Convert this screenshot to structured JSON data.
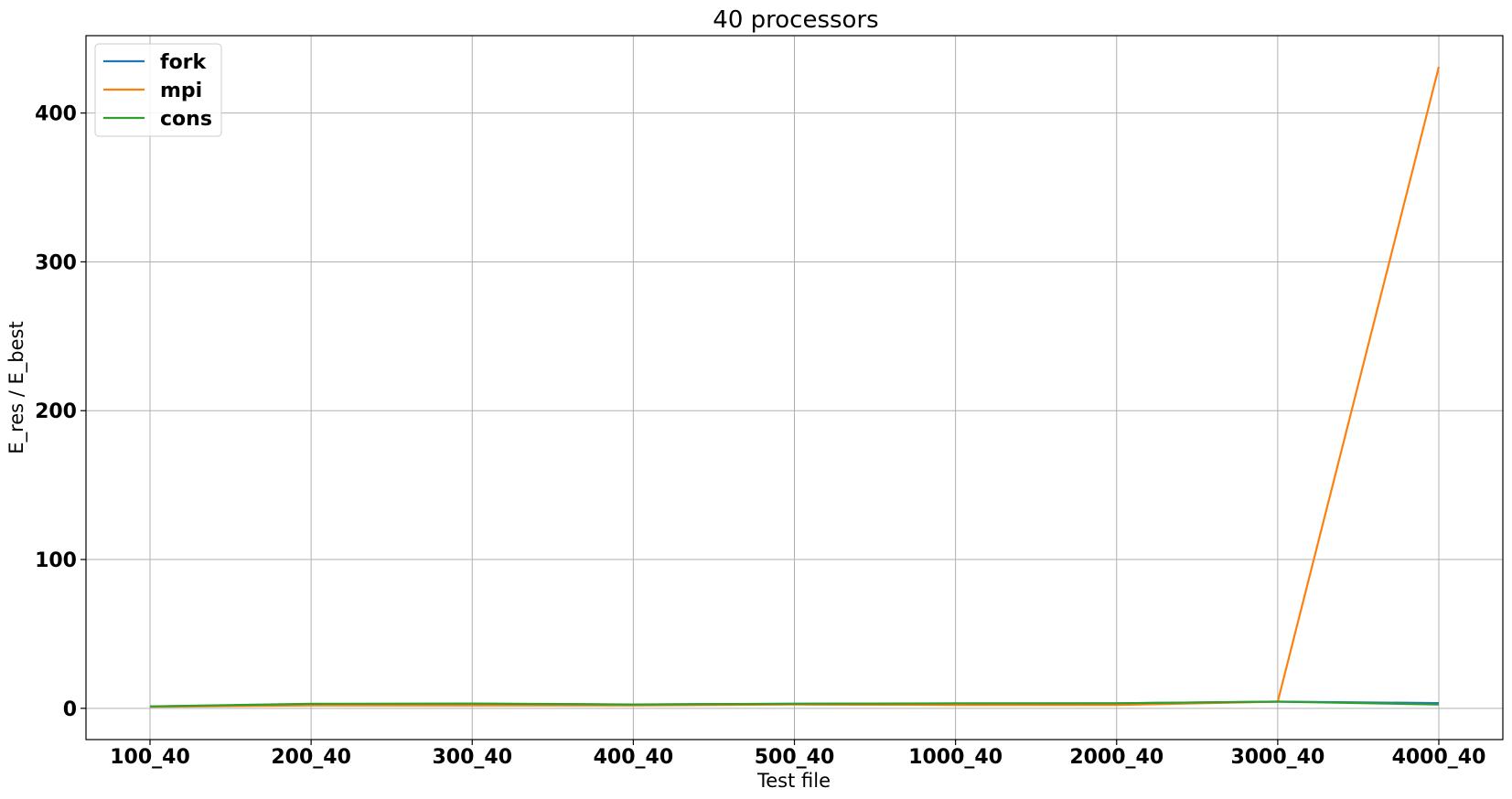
{
  "chart_data": {
    "type": "line",
    "title": "40 processors",
    "xlabel": "Test file",
    "ylabel": "E_res / E_best",
    "categories": [
      "100_40",
      "200_40",
      "300_40",
      "400_40",
      "500_40",
      "1000_40",
      "2000_40",
      "3000_40",
      "4000_40"
    ],
    "ylim": [
      -21,
      452
    ],
    "yticks": [
      0,
      100,
      200,
      300,
      400
    ],
    "grid": true,
    "legend_position": "upper-left",
    "series": [
      {
        "name": "fork",
        "color": "#1f77b4",
        "values": [
          1.2,
          2.8,
          3.0,
          2.5,
          3.0,
          3.2,
          3.3,
          4.5,
          3.5
        ]
      },
      {
        "name": "mpi",
        "color": "#ff7f0e",
        "values": [
          1.0,
          2.0,
          2.0,
          2.0,
          2.5,
          2.3,
          2.2,
          4.5,
          431
        ]
      },
      {
        "name": "cons",
        "color": "#2ca02c",
        "values": [
          1.3,
          3.0,
          3.2,
          2.6,
          3.1,
          3.3,
          3.4,
          4.5,
          2.5
        ]
      }
    ]
  }
}
